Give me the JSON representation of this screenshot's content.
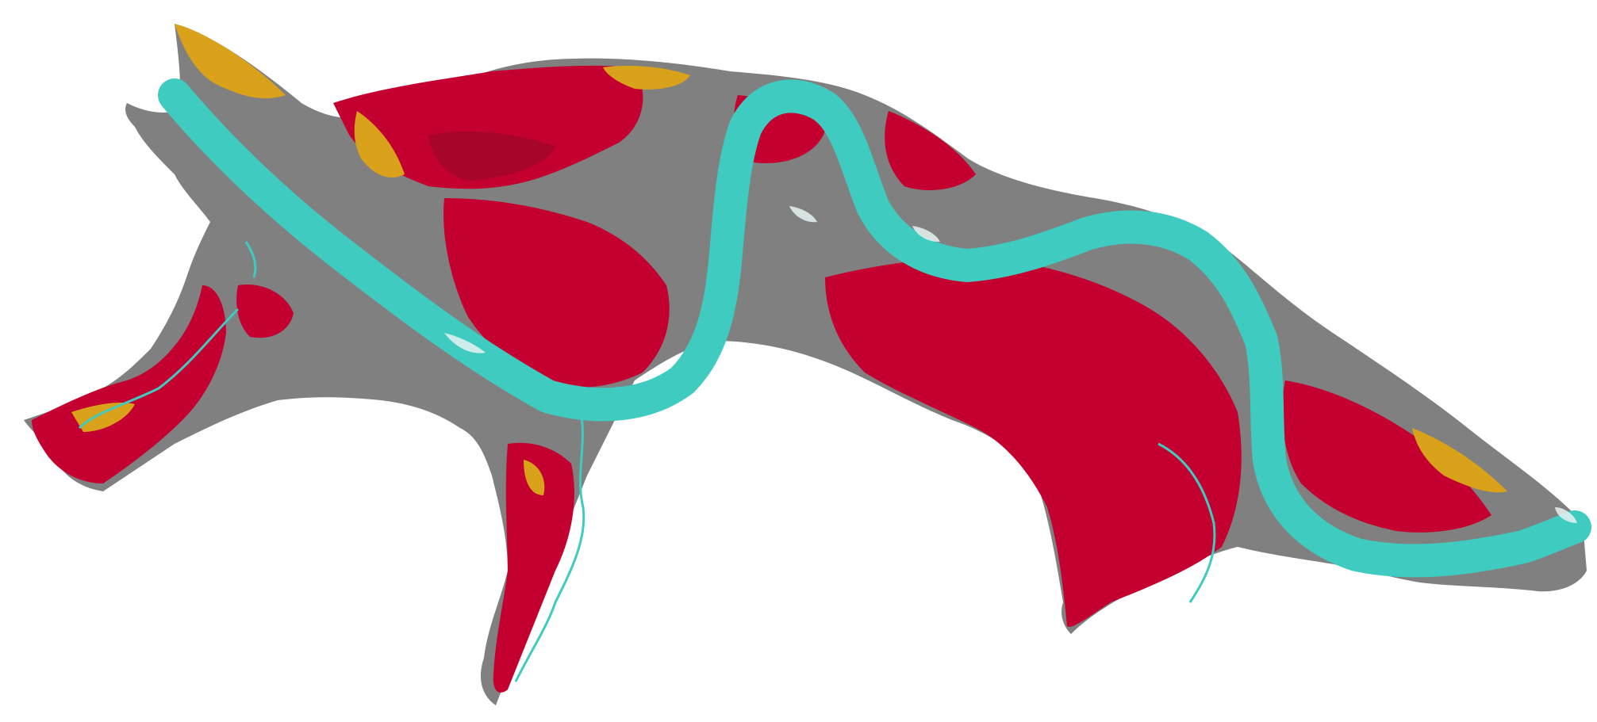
{
  "map": {
    "type": "floodplain land-cover classification map",
    "background_color": "#ffffff",
    "legend": [],
    "classes": [
      {
        "name": "water-channel",
        "color": "#3fcbbf"
      },
      {
        "name": "bare-ground",
        "color": "#808080"
      },
      {
        "name": "dense-vegetation",
        "color": "#c3002f"
      },
      {
        "name": "sparse-vegetation",
        "color": "#d9a21a"
      },
      {
        "name": "sand-bar",
        "color": "#e8f3f1"
      }
    ]
  }
}
